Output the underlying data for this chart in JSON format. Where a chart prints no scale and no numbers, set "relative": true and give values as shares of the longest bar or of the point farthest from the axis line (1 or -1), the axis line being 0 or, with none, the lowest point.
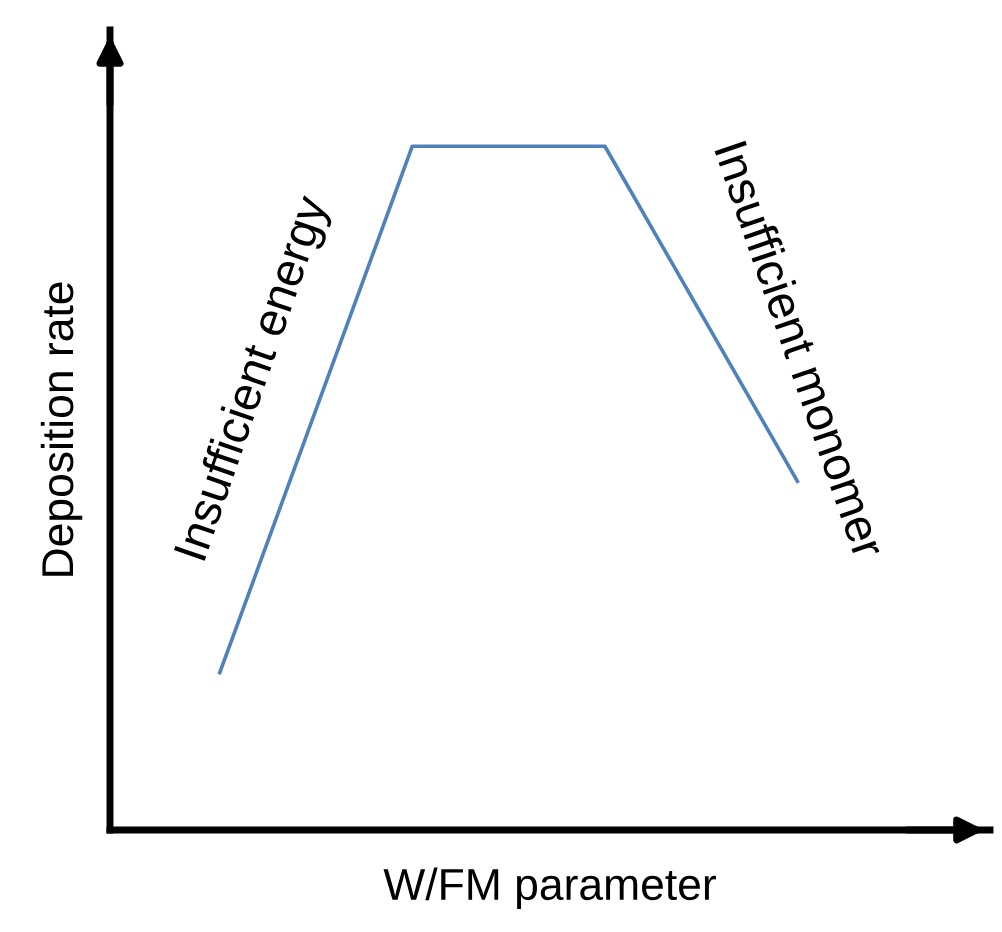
{
  "chart_data": {
    "type": "line",
    "relative": true,
    "xlabel": "W/FM parameter",
    "ylabel": "Deposition rate",
    "categories": [
      null,
      null,
      null,
      null
    ],
    "series": [
      {
        "color": "#4f81bd",
        "values": [
          0.23,
          1,
          1,
          0.51
        ]
      }
    ],
    "annotations": [
      "Insufficient energy",
      "Insufficient monomer"
    ],
    "grid": false,
    "marker": "none",
    "line_style": "solid"
  }
}
